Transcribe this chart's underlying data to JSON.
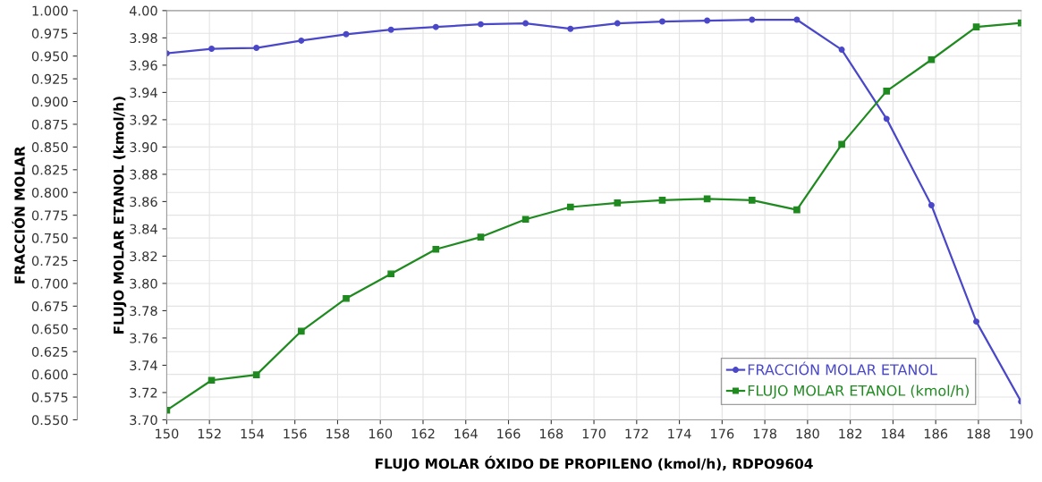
{
  "chart_data": {
    "type": "line",
    "xlabel": "FLUJO MOLAR ÓXIDO DE PROPILENO (kmol/h), RDPO9604",
    "ylabel": "FRACCIÓN MOLAR",
    "y2label": "FLUJO MOLAR ETANOL (kmol/h)",
    "x": [
      150,
      152.1,
      154.2,
      156.3,
      158.4,
      160.5,
      162.6,
      164.7,
      166.8,
      168.9,
      171.1,
      173.2,
      175.3,
      177.4,
      179.5,
      181.6,
      183.7,
      185.8,
      187.9,
      190
    ],
    "series": [
      {
        "name": "FRACCIÓN MOLAR ETANOL",
        "color": "#4a48c8",
        "marker": "circle",
        "axis": "y",
        "values": [
          0.953,
          0.958,
          0.959,
          0.967,
          0.974,
          0.979,
          0.982,
          0.985,
          0.986,
          0.98,
          0.986,
          0.988,
          0.989,
          0.99,
          0.99,
          0.957,
          0.881,
          0.786,
          0.658,
          0.57
        ]
      },
      {
        "name": "FLUJO MOLAR ETANOL (kmol/h)",
        "color": "#1f8a1f",
        "marker": "square",
        "axis": "y2",
        "values": [
          3.707,
          3.729,
          3.733,
          3.765,
          3.789,
          3.807,
          3.825,
          3.834,
          3.847,
          3.856,
          3.859,
          3.861,
          3.862,
          3.861,
          3.854,
          3.902,
          3.941,
          3.964,
          3.988,
          3.991
        ]
      }
    ],
    "xlim": [
      150,
      190
    ],
    "xticks": [
      150,
      152,
      154,
      156,
      158,
      160,
      162,
      164,
      166,
      168,
      170,
      172,
      174,
      176,
      178,
      180,
      182,
      184,
      186,
      188,
      190
    ],
    "ylim": [
      0.55,
      1.0
    ],
    "yticks": [
      {
        "value": 0.55,
        "label": "0.550"
      },
      0.575,
      {
        "value": 0.6,
        "label": "0.600"
      },
      0.625,
      {
        "value": 0.65,
        "label": "0.650"
      },
      0.675,
      {
        "value": 0.7,
        "label": "0.700"
      },
      0.725,
      {
        "value": 0.75,
        "label": "0.750"
      },
      0.775,
      {
        "value": 0.8,
        "label": "0.800"
      },
      0.825,
      {
        "value": 0.85,
        "label": "0.850"
      },
      0.875,
      {
        "value": 0.9,
        "label": "0.900"
      },
      0.925,
      {
        "value": 0.95,
        "label": "0.950"
      },
      0.975,
      {
        "value": 1.0,
        "label": "1.000"
      }
    ],
    "y2lim": [
      3.7,
      4.0
    ],
    "y2ticks": [
      {
        "value": 3.7,
        "label": "3.70"
      },
      3.72,
      3.74,
      3.76,
      3.78,
      {
        "value": 3.8,
        "label": "3.80"
      },
      3.82,
      3.84,
      3.86,
      3.88,
      {
        "value": 3.9,
        "label": "3.90"
      },
      3.92,
      3.94,
      3.96,
      3.98,
      {
        "value": 4.0,
        "label": "4.00"
      }
    ],
    "grid": true,
    "legend": "bottom right"
  }
}
